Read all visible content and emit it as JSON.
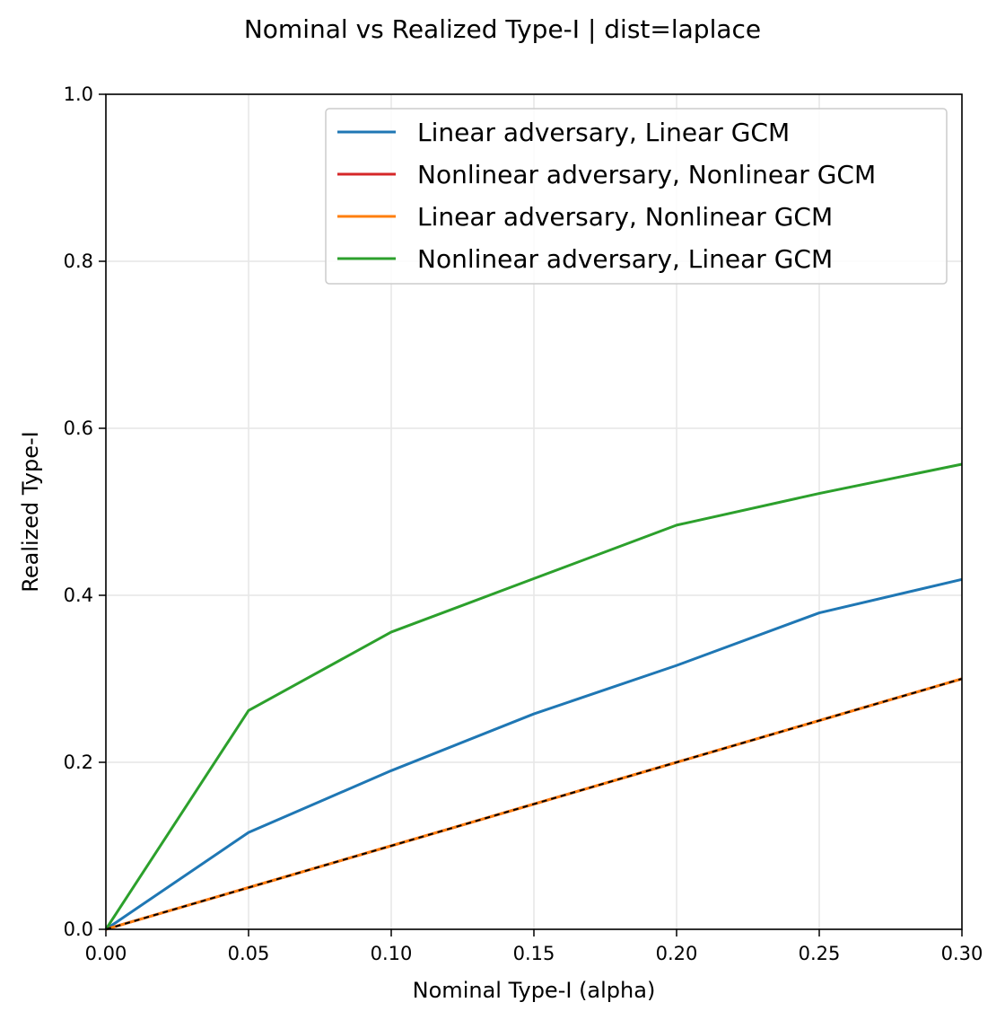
{
  "chart_data": {
    "type": "line",
    "title": "Nominal vs Realized Type-I | dist=laplace",
    "xlabel": "Nominal Type-I (alpha)",
    "ylabel": "Realized Type-I",
    "xlim": [
      0,
      0.3
    ],
    "ylim": [
      0,
      1.0
    ],
    "xticks": [
      "0.00",
      "0.05",
      "0.10",
      "0.15",
      "0.20",
      "0.25",
      "0.30"
    ],
    "yticks": [
      "0.0",
      "0.2",
      "0.4",
      "0.6",
      "0.8",
      "1.0"
    ],
    "grid": true,
    "legend_position": "upper right",
    "x": [
      0.0,
      0.05,
      0.1,
      0.15,
      0.2,
      0.25,
      0.3
    ],
    "series": [
      {
        "name": "Linear adversary, Linear GCM",
        "color": "#1f77b4",
        "values": [
          0.0,
          0.116,
          0.19,
          0.258,
          0.316,
          0.379,
          0.419
        ]
      },
      {
        "name": "Nonlinear adversary, Nonlinear GCM",
        "color": "#d62728",
        "values": [
          0.0,
          0.05,
          0.1,
          0.15,
          0.2,
          0.25,
          0.3
        ]
      },
      {
        "name": "Linear adversary, Nonlinear GCM",
        "color": "#ff7f0e",
        "values": [
          0.0,
          0.05,
          0.1,
          0.15,
          0.2,
          0.25,
          0.3
        ]
      },
      {
        "name": "Nonlinear adversary, Linear GCM",
        "color": "#2ca02c",
        "values": [
          0.0,
          0.262,
          0.356,
          0.42,
          0.484,
          0.522,
          0.557
        ]
      }
    ],
    "reference_line": {
      "style": "dashed",
      "color": "#000000",
      "x": [
        0.0,
        0.3
      ],
      "y": [
        0.0,
        0.3
      ]
    }
  }
}
